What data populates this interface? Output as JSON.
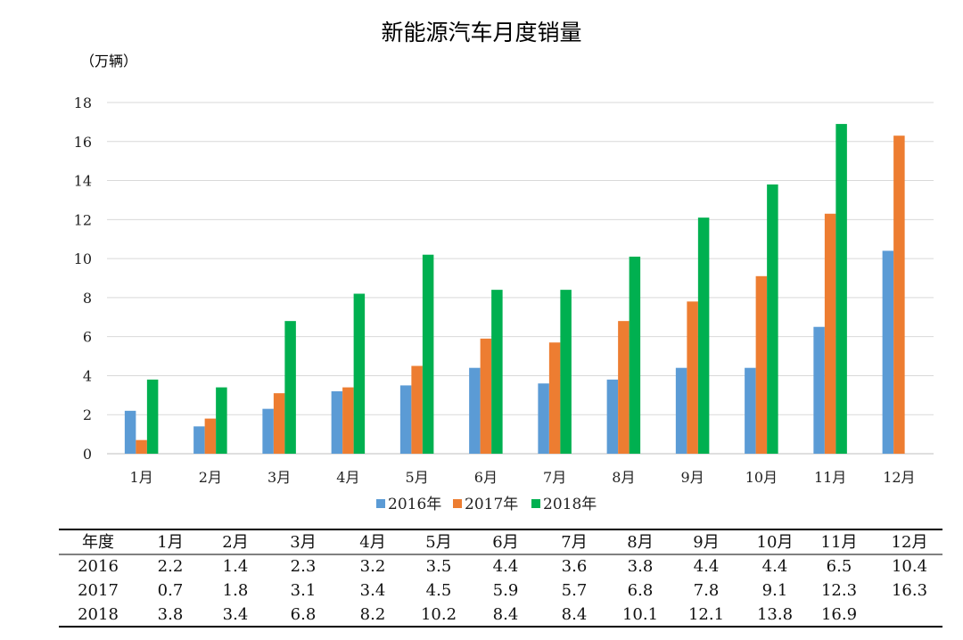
{
  "chart_data": {
    "type": "bar",
    "title": "新能源汽车月度销量",
    "unit_label": "（万辆）",
    "categories": [
      "1月",
      "2月",
      "3月",
      "4月",
      "5月",
      "6月",
      "7月",
      "8月",
      "9月",
      "10月",
      "11月",
      "12月"
    ],
    "ylim": [
      0,
      18
    ],
    "yticks": [
      0,
      2,
      4,
      6,
      8,
      10,
      12,
      14,
      16,
      18
    ],
    "grid": true,
    "legend_position": "bottom",
    "series": [
      {
        "name": "2016年",
        "color": "#5B9BD5",
        "values": [
          2.2,
          1.4,
          2.3,
          3.2,
          3.5,
          4.4,
          3.6,
          3.8,
          4.4,
          4.4,
          6.5,
          10.4
        ]
      },
      {
        "name": "2017年",
        "color": "#ED7D31",
        "values": [
          0.7,
          1.8,
          3.1,
          3.4,
          4.5,
          5.9,
          5.7,
          6.8,
          7.8,
          9.1,
          12.3,
          16.3
        ]
      },
      {
        "name": "2018年",
        "color": "#00B050",
        "values": [
          3.8,
          3.4,
          6.8,
          8.2,
          10.2,
          8.4,
          8.4,
          10.1,
          12.1,
          13.8,
          16.9,
          null
        ]
      }
    ]
  },
  "data_table": {
    "header": [
      "年度",
      "1月",
      "2月",
      "3月",
      "4月",
      "5月",
      "6月",
      "7月",
      "8月",
      "9月",
      "10月",
      "11月",
      "12月"
    ],
    "rows": [
      [
        "2016",
        "2.2",
        "1.4",
        "2.3",
        "3.2",
        "3.5",
        "4.4",
        "3.6",
        "3.8",
        "4.4",
        "4.4",
        "6.5",
        "10.4"
      ],
      [
        "2017",
        "0.7",
        "1.8",
        "3.1",
        "3.4",
        "4.5",
        "5.9",
        "5.7",
        "6.8",
        "7.8",
        "9.1",
        "12.3",
        "16.3"
      ],
      [
        "2018",
        "3.8",
        "3.4",
        "6.8",
        "8.2",
        "10.2",
        "8.4",
        "8.4",
        "10.1",
        "12.1",
        "13.8",
        "16.9",
        ""
      ]
    ]
  }
}
